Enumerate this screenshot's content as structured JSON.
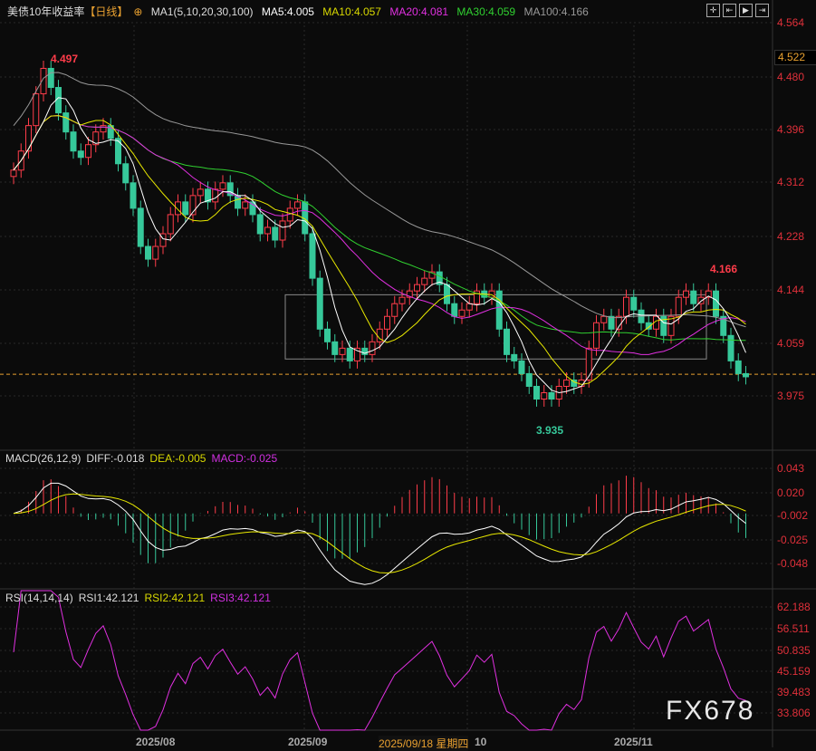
{
  "header": {
    "title": "美债10年收益率",
    "period": "【日线】",
    "ma_label": "MA1(5,10,20,30,100)",
    "ma5": "MA5:4.005",
    "ma10": "MA10:4.057",
    "ma20": "MA20:4.081",
    "ma30": "MA30:4.059",
    "ma100": "MA100:4.166"
  },
  "macd_header": {
    "label": "MACD(26,12,9)",
    "diff": "DIFF:-0.018",
    "dea": "DEA:-0.005",
    "macd": "MACD:-0.025"
  },
  "rsi_header": {
    "label": "RSI(14,14,14)",
    "rsi1": "RSI1:42.121",
    "rsi2": "RSI2:42.121",
    "rsi3": "RSI3:42.121"
  },
  "toolbar": {
    "icons": [
      "crosshair-icon",
      "zoom-in-icon",
      "play-icon",
      "exit-icon"
    ]
  },
  "price_axis": [
    "4.564",
    "4.480",
    "4.396",
    "4.312",
    "4.228",
    "4.144",
    "4.059",
    "3.975"
  ],
  "price_current_label": "4.522",
  "macd_axis": [
    "0.043",
    "0.020",
    "-0.002",
    "-0.025",
    "-0.048"
  ],
  "rsi_axis": [
    "62.188",
    "56.511",
    "50.835",
    "45.159",
    "39.483",
    "33.806"
  ],
  "date_labels": [
    "2025/08",
    "2025/09",
    "10",
    "2025/11"
  ],
  "cursor_date": "2025/09/18 星期四",
  "annotations": {
    "high": "4.497",
    "low": "3.935",
    "recent_high": "4.166"
  },
  "watermark": "FX678",
  "colors": {
    "up": "#ff3c4a",
    "down": "#36c89a",
    "ma5": "#ffffff",
    "ma10": "#e8e800",
    "ma20": "#e030e0",
    "ma30": "#30d030",
    "ma100": "#999999",
    "axis": "#e0303a",
    "current": "#e8a030"
  },
  "chart_data": {
    "type": "candlestick",
    "price_range": [
      3.93,
      4.58
    ],
    "current_price": 4.009,
    "closes": [
      4.33,
      4.36,
      4.4,
      4.45,
      4.49,
      4.46,
      4.42,
      4.39,
      4.36,
      4.35,
      4.37,
      4.39,
      4.4,
      4.38,
      4.34,
      4.31,
      4.27,
      4.21,
      4.19,
      4.21,
      4.23,
      4.26,
      4.28,
      4.26,
      4.29,
      4.3,
      4.28,
      4.3,
      4.31,
      4.29,
      4.27,
      4.28,
      4.26,
      4.23,
      4.24,
      4.22,
      4.25,
      4.27,
      4.28,
      4.23,
      4.16,
      4.08,
      4.06,
      4.04,
      4.05,
      4.03,
      4.05,
      4.04,
      4.06,
      4.08,
      4.1,
      4.12,
      4.13,
      4.14,
      4.15,
      4.16,
      4.17,
      4.15,
      4.12,
      4.1,
      4.11,
      4.12,
      4.14,
      4.13,
      4.14,
      4.08,
      4.04,
      4.03,
      4.01,
      3.99,
      3.97,
      3.98,
      3.97,
      3.99,
      4.0,
      3.99,
      4.0,
      4.05,
      4.09,
      4.1,
      4.08,
      4.1,
      4.13,
      4.11,
      4.09,
      4.08,
      4.1,
      4.07,
      4.1,
      4.13,
      4.14,
      4.12,
      4.13,
      4.14,
      4.1,
      4.07,
      4.03,
      4.01,
      4.005
    ],
    "box": {
      "price_top": 4.134,
      "price_bottom": 4.033
    }
  }
}
